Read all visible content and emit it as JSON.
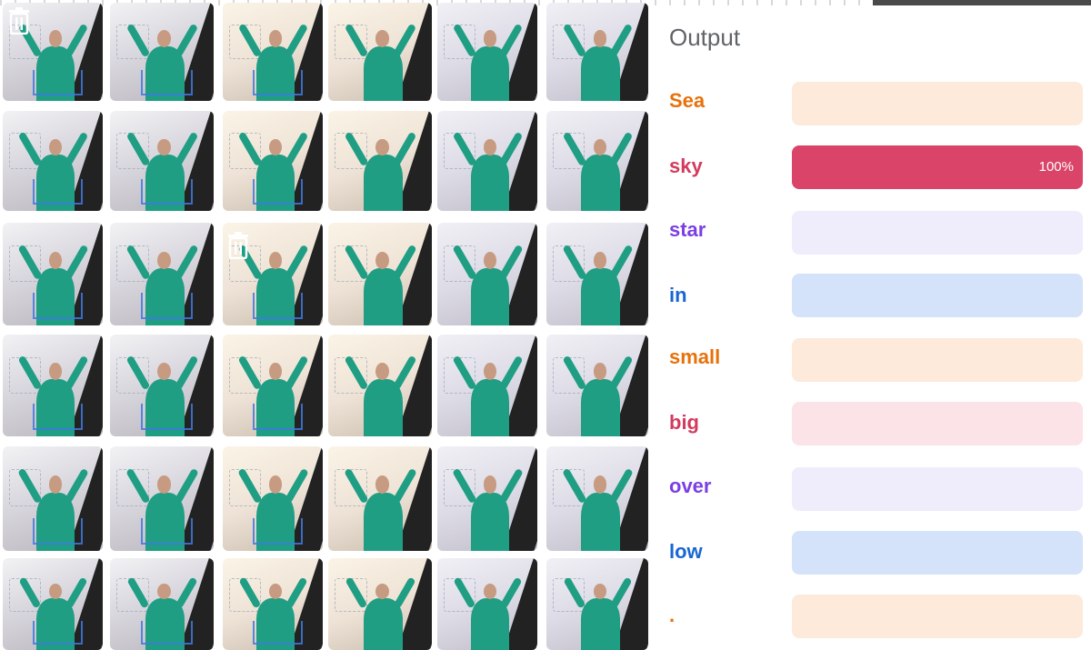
{
  "output": {
    "title": "Output",
    "classes": [
      {
        "label": "Sea",
        "color": "#e8710a",
        "track": "#fdeadb",
        "fill": "#e8710a",
        "confidence": 0,
        "pct_text": ""
      },
      {
        "label": "sky",
        "color": "#d33b5e",
        "track": "#fbe3e8",
        "fill": "#d94468",
        "confidence": 1.0,
        "pct_text": "100%"
      },
      {
        "label": "star",
        "color": "#7b3fe4",
        "track": "#efecfb",
        "fill": "#7b3fe4",
        "confidence": 0,
        "pct_text": ""
      },
      {
        "label": "in",
        "color": "#1967d2",
        "track": "#d4e3fa",
        "fill": "#1967d2",
        "confidence": 0,
        "pct_text": ""
      },
      {
        "label": "small",
        "color": "#e8710a",
        "track": "#fdeadb",
        "fill": "#e8710a",
        "confidence": 0,
        "pct_text": ""
      },
      {
        "label": "big",
        "color": "#d33b5e",
        "track": "#fbe3e8",
        "fill": "#d33b5e",
        "confidence": 0,
        "pct_text": ""
      },
      {
        "label": "over",
        "color": "#7b3fe4",
        "track": "#efecfb",
        "fill": "#7b3fe4",
        "confidence": 0,
        "pct_text": ""
      },
      {
        "label": "low",
        "color": "#1967d2",
        "track": "#d4e3fa",
        "fill": "#1967d2",
        "confidence": 0,
        "pct_text": ""
      },
      {
        "label": ".",
        "color": "#e8710a",
        "track": "#fdeadb",
        "fill": "#e8710a",
        "confidence": 0,
        "pct_text": ""
      }
    ]
  },
  "samples": {
    "columns": 6,
    "rows": 6,
    "delete_icon": "trash-icon"
  }
}
